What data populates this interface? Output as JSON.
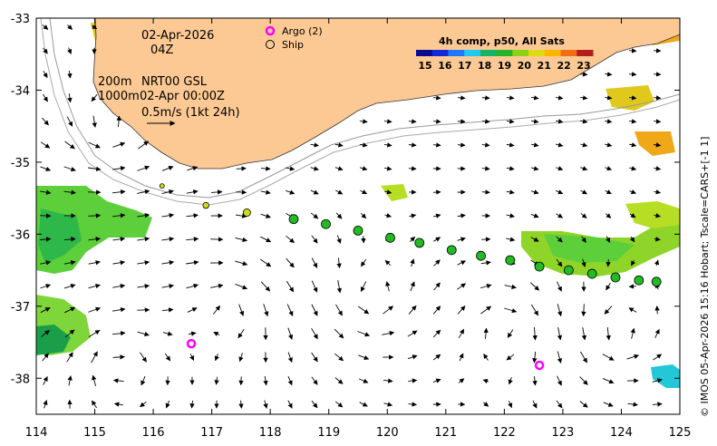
{
  "map": {
    "date_label": "02-Apr-2026",
    "hour_label": "04Z",
    "depth_label": "200m",
    "product_label": "NRT00 GSL",
    "depth2_label": "1000m",
    "analysis_time": "02-Apr 00:00Z",
    "scale_arrow_label": "0.5m/s (1kt 24h)",
    "lon_range": [
      114,
      125
    ],
    "lat_range": [
      -38.5,
      -33
    ],
    "lon_ticks": [
      "114",
      "115",
      "116",
      "117",
      "118",
      "119",
      "120",
      "121",
      "122",
      "123",
      "124",
      "125"
    ],
    "lat_ticks": [
      "-33",
      "-34",
      "-35",
      "-36",
      "-37",
      "-38"
    ],
    "copyright": "© IMOS 05-Apr-2026 15:16 Hobart; Tscale=CARS+[-1 1]",
    "colors": {
      "land": "#fcc994",
      "argo": "#ff00ff",
      "ship_fill": "#22bb22"
    }
  },
  "legend": {
    "argo_label": "Argo (2)",
    "ship_label": "Ship",
    "argo_icon": "magenta-circle-icon",
    "ship_icon": "black-circle-icon"
  },
  "colorbar": {
    "title": "4h comp, p50, All Sats",
    "ticks": [
      "15",
      "16",
      "17",
      "18",
      "19",
      "20",
      "21",
      "22",
      "23"
    ],
    "colors": [
      "#0a0a90",
      "#1428d8",
      "#1e78ff",
      "#1ec8f0",
      "#14b464",
      "#28b428",
      "#8cd214",
      "#dcdc14",
      "#ffb400",
      "#f06e14",
      "#b41e1e"
    ]
  },
  "markers": {
    "argo": [
      {
        "lon": 116.65,
        "lat": -37.52
      },
      {
        "lon": 122.6,
        "lat": -37.82
      }
    ],
    "ship_track": [
      {
        "lon": 116.15,
        "lat": -35.33
      },
      {
        "lon": 116.9,
        "lat": -35.6
      },
      {
        "lon": 117.6,
        "lat": -35.7
      },
      {
        "lon": 118.4,
        "lat": -35.79
      },
      {
        "lon": 118.95,
        "lat": -35.86
      },
      {
        "lon": 119.5,
        "lat": -35.95
      },
      {
        "lon": 120.05,
        "lat": -36.05
      },
      {
        "lon": 120.55,
        "lat": -36.12
      },
      {
        "lon": 121.1,
        "lat": -36.22
      },
      {
        "lon": 121.6,
        "lat": -36.3
      },
      {
        "lon": 122.1,
        "lat": -36.36
      },
      {
        "lon": 122.6,
        "lat": -36.45
      },
      {
        "lon": 123.1,
        "lat": -36.5
      },
      {
        "lon": 123.5,
        "lat": -36.55
      },
      {
        "lon": 123.9,
        "lat": -36.6
      },
      {
        "lon": 124.3,
        "lat": -36.64
      },
      {
        "lon": 124.6,
        "lat": -36.66
      }
    ]
  }
}
